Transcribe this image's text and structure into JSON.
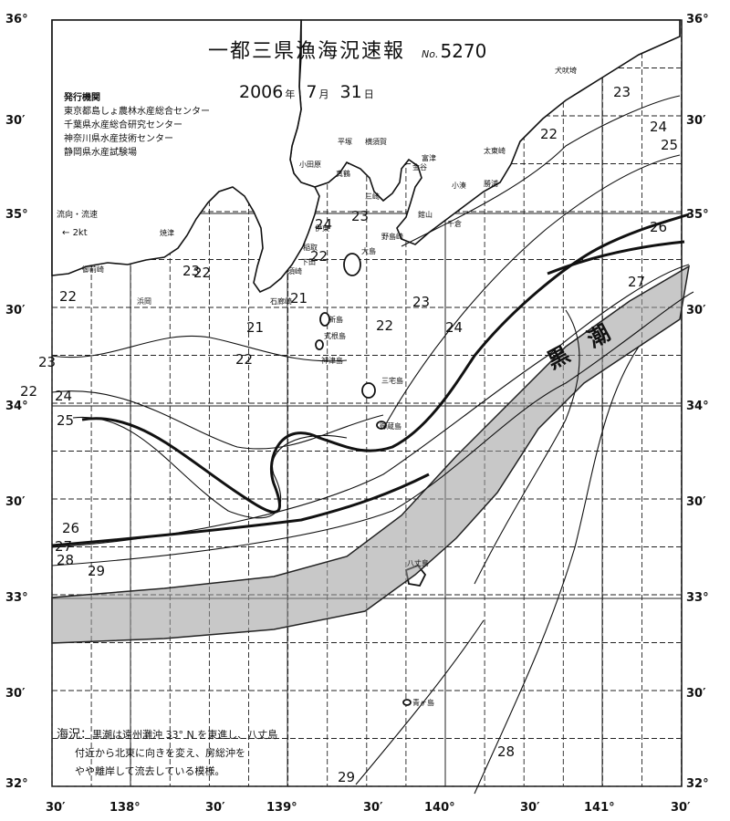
{
  "header": {
    "title": "一都三県漁海況速報",
    "issue_prefix": "No.",
    "issue_number": "5270",
    "year": "2006",
    "year_unit": "年",
    "month": "7",
    "month_unit": "月",
    "day": "31",
    "day_unit": "日"
  },
  "publishers": {
    "heading": "発行機関",
    "items": [
      "東京都島しょ農林水産総合センター",
      "千葉県水産総合研究センター",
      "神奈川県水産技術センター",
      "静岡県水産試験場"
    ]
  },
  "legend": {
    "label": "流向・流速",
    "speed": "2kt"
  },
  "remark": {
    "label": "海況：",
    "lines": [
      "黒潮は遠州灘沖 33° N を東進し、八丈島",
      "付近から北東に向きを変え、房総沖を",
      "やや離岸して流去している模様。"
    ]
  },
  "current_label": [
    "黒",
    "潮"
  ],
  "axes": {
    "left_lat_labels": [
      "36°",
      "30′",
      "35°",
      "30′",
      "34°",
      "30′",
      "33°",
      "30′",
      "32°"
    ],
    "right_lat_labels": [
      "36°",
      "30′",
      "35°",
      "30′",
      "34°",
      "30′",
      "33°",
      "30′",
      "32°"
    ],
    "lon_labels": [
      "30′",
      "138°",
      "30′",
      "139°",
      "30′",
      "140°",
      "30′",
      "141°",
      "30′"
    ]
  },
  "places": [
    {
      "name": "犬吠埼"
    },
    {
      "name": "平塚"
    },
    {
      "name": "横須賀"
    },
    {
      "name": "小田原"
    },
    {
      "name": "金谷"
    },
    {
      "name": "富津"
    },
    {
      "name": "真鶴"
    },
    {
      "name": "三崎"
    },
    {
      "name": "館山"
    },
    {
      "name": "太東崎"
    },
    {
      "name": "勝浦"
    },
    {
      "name": "小湊"
    },
    {
      "name": "千倉"
    },
    {
      "name": "野島崎"
    },
    {
      "name": "伊東"
    },
    {
      "name": "大島"
    },
    {
      "name": "稲取"
    },
    {
      "name": "下田"
    },
    {
      "name": "須崎"
    },
    {
      "name": "石廊崎"
    },
    {
      "name": "焼津"
    },
    {
      "name": "御前崎"
    },
    {
      "name": "新島"
    },
    {
      "name": "式根島"
    },
    {
      "name": "神津島"
    },
    {
      "name": "三宅島"
    },
    {
      "name": "御蔵島"
    },
    {
      "name": "八丈島"
    },
    {
      "name": "青ヶ島"
    },
    {
      "name": "浜岡"
    }
  ],
  "isotherm_labels": [
    {
      "value": "23"
    },
    {
      "value": "24"
    },
    {
      "value": "25"
    },
    {
      "value": "22"
    },
    {
      "value": "26"
    },
    {
      "value": "27"
    },
    {
      "value": "22"
    },
    {
      "value": "24"
    },
    {
      "value": "23"
    },
    {
      "value": "22"
    },
    {
      "value": "21"
    },
    {
      "value": "22"
    },
    {
      "value": "23"
    },
    {
      "value": "22"
    },
    {
      "value": "24"
    },
    {
      "value": "21"
    },
    {
      "value": "22"
    },
    {
      "value": "23"
    },
    {
      "value": "24"
    },
    {
      "value": "25"
    },
    {
      "value": "26"
    },
    {
      "value": "27"
    },
    {
      "value": "28"
    },
    {
      "value": "29"
    },
    {
      "value": "28"
    },
    {
      "value": "29"
    },
    {
      "value": "22"
    },
    {
      "value": "23"
    }
  ]
}
